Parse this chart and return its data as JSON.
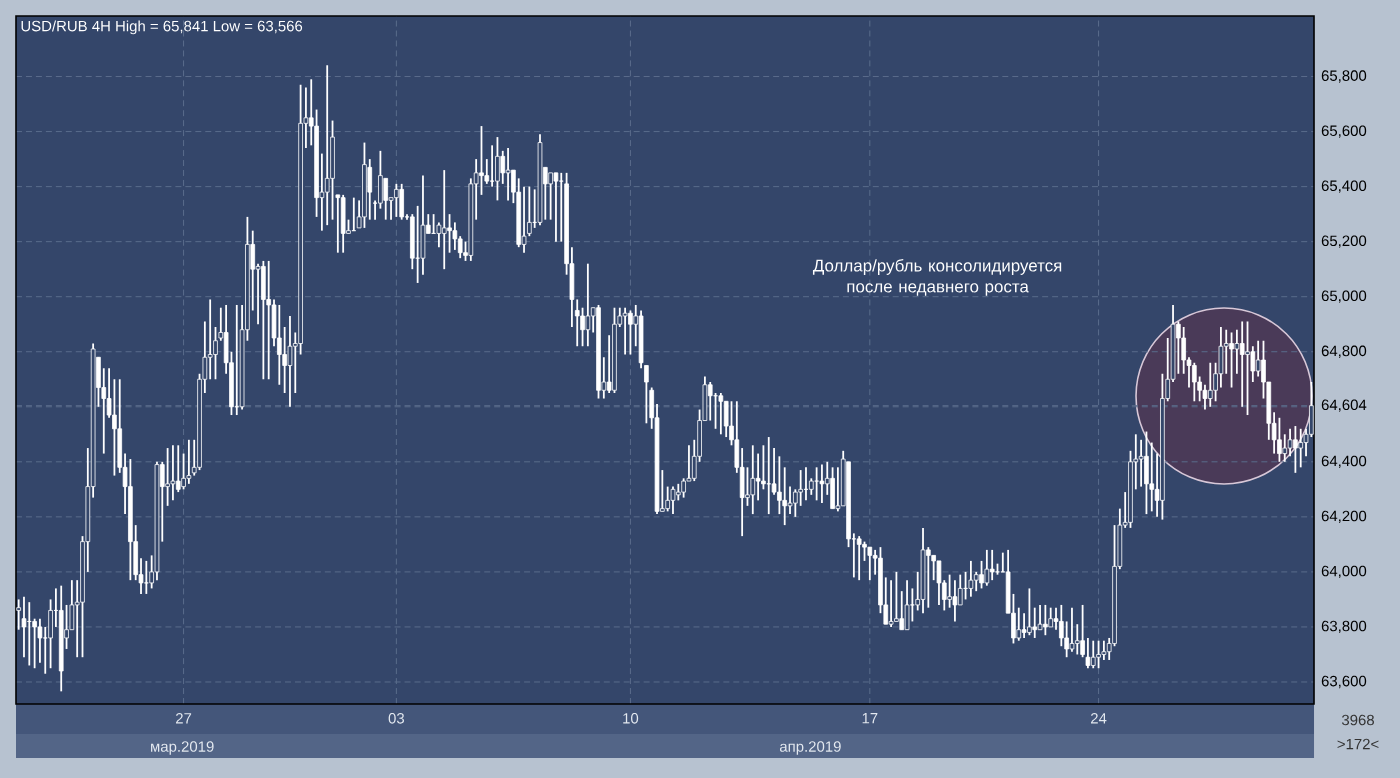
{
  "chart_data": {
    "type": "candlestick",
    "title": "USD/RUB 4H High = 65,841 Low = 63,566",
    "color": "#ffffff",
    "grid": true,
    "ylim": [
      63520,
      66020
    ],
    "yticks": [
      {
        "value": 63600,
        "label": "63,600"
      },
      {
        "value": 63800,
        "label": "63,800"
      },
      {
        "value": 64000,
        "label": "64,000"
      },
      {
        "value": 64200,
        "label": "64,200"
      },
      {
        "value": 64400,
        "label": "64,400"
      },
      {
        "value": 64600,
        "label": null
      },
      {
        "value": 64800,
        "label": "64,800"
      },
      {
        "value": 65000,
        "label": "65,000"
      },
      {
        "value": 65200,
        "label": "65,200"
      },
      {
        "value": 65400,
        "label": "65,400"
      },
      {
        "value": 65600,
        "label": "65,600"
      },
      {
        "value": 65800,
        "label": "65,800"
      },
      {
        "value": 64604,
        "label": "64,604"
      }
    ],
    "annotations": [
      "Доллар/рубль консолидируется после недавнего роста",
      "мар.2019",
      "апр.2019",
      "3968",
      ">172<"
    ],
    "categories": [
      null,
      null,
      null,
      null,
      null,
      null,
      null,
      null,
      null,
      null,
      null,
      null,
      null,
      null,
      null,
      null,
      null,
      null,
      null,
      null,
      null,
      null,
      null,
      null,
      null,
      null,
      null,
      null,
      null,
      null,
      null,
      "27",
      null,
      null,
      null,
      null,
      null,
      null,
      null,
      null,
      null,
      null,
      null,
      null,
      null,
      null,
      null,
      null,
      null,
      null,
      null,
      null,
      null,
      null,
      null,
      null,
      null,
      null,
      null,
      null,
      null,
      null,
      null,
      null,
      null,
      null,
      null,
      null,
      null,
      null,
      null,
      "03",
      null,
      null,
      null,
      null,
      null,
      null,
      null,
      null,
      null,
      null,
      null,
      null,
      null,
      null,
      null,
      null,
      null,
      null,
      null,
      null,
      null,
      null,
      null,
      null,
      null,
      null,
      null,
      null,
      null,
      null,
      null,
      null,
      null,
      null,
      null,
      null,
      null,
      null,
      null,
      null,
      null,
      null,
      null,
      "10",
      null,
      null,
      null,
      null,
      null,
      null,
      null,
      null,
      null,
      null,
      null,
      null,
      null,
      null,
      null,
      null,
      null,
      null,
      null,
      null,
      null,
      null,
      null,
      null,
      null,
      null,
      null,
      null,
      null,
      null,
      null,
      null,
      null,
      null,
      null,
      null,
      null,
      null,
      null,
      null,
      null,
      null,
      null,
      null,
      "17",
      null,
      null,
      null,
      null,
      null,
      null,
      null,
      null,
      null,
      null,
      null,
      null,
      null,
      null,
      null,
      null,
      null,
      null,
      null,
      null,
      null,
      null,
      null,
      null,
      null,
      null,
      null,
      null,
      null,
      null,
      null,
      null,
      null,
      null,
      null,
      null,
      null,
      null,
      null,
      null,
      null,
      null,
      "24",
      null,
      null,
      null,
      null,
      null,
      null,
      null,
      null,
      null,
      null,
      null,
      null,
      null,
      null,
      null,
      null,
      null,
      null,
      null,
      null,
      null,
      null,
      null,
      null,
      null,
      null,
      null,
      null,
      null,
      null,
      null,
      null,
      null,
      null,
      null,
      null,
      null,
      null,
      null,
      null
    ],
    "ohlc": [
      [
        63860,
        63900,
        63790,
        63870
      ],
      [
        63830,
        63910,
        63690,
        63800
      ],
      [
        63820,
        63890,
        63660,
        63820
      ],
      [
        63820,
        63830,
        63650,
        63800
      ],
      [
        63800,
        63830,
        63670,
        63760
      ],
      [
        63760,
        63800,
        63630,
        63760
      ],
      [
        63760,
        63900,
        63650,
        63860
      ],
      [
        63860,
        63940,
        63800,
        63860
      ],
      [
        63860,
        63950,
        63566,
        63640
      ],
      [
        63760,
        63880,
        63720,
        63790
      ],
      [
        63790,
        63970,
        63790,
        63880
      ],
      [
        63880,
        63970,
        63690,
        63890
      ],
      [
        63890,
        64130,
        63690,
        64110
      ],
      [
        64110,
        64450,
        64000,
        64310
      ],
      [
        64310,
        64830,
        64270,
        64810
      ],
      [
        64780,
        64780,
        64600,
        64670
      ],
      [
        64670,
        64740,
        64430,
        64630
      ],
      [
        64630,
        64740,
        64560,
        64570
      ],
      [
        64570,
        64700,
        64350,
        64520
      ],
      [
        64520,
        64700,
        64360,
        64380
      ],
      [
        64380,
        64430,
        64210,
        64310
      ],
      [
        64310,
        64410,
        63970,
        64110
      ],
      [
        64110,
        64170,
        63970,
        63990
      ],
      [
        63990,
        64050,
        63920,
        63960
      ],
      [
        63960,
        64040,
        63920,
        63960
      ],
      [
        63960,
        64060,
        63940,
        64000
      ],
      [
        64000,
        64400,
        63970,
        64390
      ],
      [
        64390,
        64400,
        64110,
        64310
      ],
      [
        64310,
        64450,
        64240,
        64320
      ],
      [
        64320,
        64460,
        64260,
        64330
      ],
      [
        64330,
        64460,
        64290,
        64300
      ],
      [
        64310,
        64430,
        64300,
        64340
      ],
      [
        64340,
        64480,
        64320,
        64350
      ],
      [
        64360,
        64480,
        64350,
        64380
      ],
      [
        64380,
        64720,
        64370,
        64700
      ],
      [
        64700,
        64910,
        64650,
        64780
      ],
      [
        64780,
        64990,
        64700,
        64790
      ],
      [
        64790,
        64890,
        64700,
        64840
      ],
      [
        64850,
        64960,
        64840,
        64870
      ],
      [
        64870,
        64970,
        64720,
        64760
      ],
      [
        64760,
        64800,
        64570,
        64600
      ],
      [
        64600,
        64970,
        64570,
        64600
      ],
      [
        64600,
        64970,
        64590,
        64880
      ],
      [
        64880,
        65290,
        64840,
        65190
      ],
      [
        65190,
        65240,
        64950,
        65100
      ],
      [
        65100,
        65120,
        64900,
        65110
      ],
      [
        65110,
        65130,
        64700,
        64990
      ],
      [
        64990,
        65130,
        64700,
        64970
      ],
      [
        64970,
        64990,
        64820,
        64850
      ],
      [
        64850,
        64970,
        64680,
        64790
      ],
      [
        64790,
        64890,
        64650,
        64750
      ],
      [
        64750,
        64930,
        64600,
        64820
      ],
      [
        64820,
        64870,
        64650,
        64830
      ],
      [
        64830,
        65770,
        64790,
        65630
      ],
      [
        65630,
        65760,
        65540,
        65650
      ],
      [
        65650,
        65790,
        65550,
        65620
      ],
      [
        65620,
        65680,
        65290,
        65360
      ],
      [
        65360,
        65520,
        65240,
        65380
      ],
      [
        65380,
        65841,
        65260,
        65430
      ],
      [
        65430,
        65640,
        65280,
        65580
      ],
      [
        65370,
        65370,
        65160,
        65360
      ],
      [
        65360,
        65370,
        65160,
        65230
      ],
      [
        65230,
        65280,
        65230,
        65240
      ],
      [
        65240,
        65360,
        65240,
        65240
      ],
      [
        65250,
        65350,
        65250,
        65290
      ],
      [
        65290,
        65560,
        65250,
        65480
      ],
      [
        65470,
        65500,
        65280,
        65380
      ],
      [
        65340,
        65350,
        65280,
        65340
      ],
      [
        65340,
        65530,
        65320,
        65440
      ],
      [
        65430,
        65430,
        65280,
        65350
      ],
      [
        65350,
        65360,
        65280,
        65360
      ],
      [
        65360,
        65410,
        65290,
        65390
      ],
      [
        65390,
        65410,
        65280,
        65290
      ],
      [
        65290,
        65300,
        65280,
        65290
      ],
      [
        65290,
        65300,
        65100,
        65140
      ],
      [
        65140,
        65330,
        65050,
        65140
      ],
      [
        65140,
        65440,
        65080,
        65260
      ],
      [
        65260,
        65300,
        65230,
        65230
      ],
      [
        65230,
        65300,
        65230,
        65230
      ],
      [
        65230,
        65270,
        65180,
        65260
      ],
      [
        65230,
        65460,
        65100,
        65250
      ],
      [
        65250,
        65300,
        65160,
        65240
      ],
      [
        65240,
        65270,
        65170,
        65210
      ],
      [
        65210,
        65220,
        65140,
        65160
      ],
      [
        65160,
        65200,
        65130,
        65150
      ],
      [
        65150,
        65430,
        65130,
        65410
      ],
      [
        65410,
        65500,
        65280,
        65450
      ],
      [
        65450,
        65620,
        65370,
        65440
      ],
      [
        65440,
        65500,
        65410,
        65420
      ],
      [
        65420,
        65550,
        65400,
        65420
      ],
      [
        65420,
        65580,
        65350,
        65510
      ],
      [
        65510,
        65530,
        65410,
        65450
      ],
      [
        65450,
        65540,
        65350,
        65460
      ],
      [
        65460,
        65460,
        65340,
        65380
      ],
      [
        65380,
        65430,
        65180,
        65190
      ],
      [
        65190,
        65400,
        65160,
        65220
      ],
      [
        65230,
        65400,
        65220,
        65270
      ],
      [
        65270,
        65390,
        65250,
        65270
      ],
      [
        65270,
        65590,
        65260,
        65560
      ],
      [
        65470,
        65470,
        65280,
        65410
      ],
      [
        65410,
        65450,
        65280,
        65450
      ],
      [
        65450,
        65450,
        65200,
        65420
      ],
      [
        65420,
        65450,
        65200,
        65420
      ],
      [
        65410,
        65450,
        65080,
        65120
      ],
      [
        65120,
        65180,
        64890,
        64990
      ],
      [
        64950,
        64990,
        64820,
        64930
      ],
      [
        64930,
        64960,
        64820,
        64880
      ],
      [
        64880,
        65120,
        64820,
        64930
      ],
      [
        64930,
        64960,
        64870,
        64960
      ],
      [
        64960,
        64970,
        64630,
        64660
      ],
      [
        64660,
        64780,
        64630,
        64690
      ],
      [
        64690,
        64860,
        64650,
        64660
      ],
      [
        64660,
        64960,
        64650,
        64900
      ],
      [
        64900,
        64960,
        64890,
        64930
      ],
      [
        64930,
        64960,
        64790,
        64940
      ],
      [
        64940,
        64950,
        64790,
        64900
      ],
      [
        64900,
        64970,
        64820,
        64930
      ],
      [
        64930,
        64950,
        64740,
        64760
      ],
      [
        64750,
        64750,
        64540,
        64690
      ],
      [
        64660,
        64670,
        64520,
        64560
      ],
      [
        64560,
        64610,
        64210,
        64220
      ],
      [
        64220,
        64370,
        64220,
        64230
      ],
      [
        64230,
        64310,
        64220,
        64260
      ],
      [
        64260,
        64310,
        64210,
        64300
      ],
      [
        64280,
        64320,
        64260,
        64290
      ],
      [
        64290,
        64340,
        64270,
        64330
      ],
      [
        64330,
        64460,
        64330,
        64340
      ],
      [
        64340,
        64480,
        64330,
        64420
      ],
      [
        64420,
        64590,
        64400,
        64550
      ],
      [
        64550,
        64710,
        64550,
        64680
      ],
      [
        64680,
        64690,
        64550,
        64640
      ],
      [
        64640,
        64650,
        64520,
        64640
      ],
      [
        64640,
        64650,
        64500,
        64620
      ],
      [
        64620,
        64620,
        64490,
        64530
      ],
      [
        64530,
        64620,
        64460,
        64480
      ],
      [
        64480,
        64620,
        64360,
        64380
      ],
      [
        64380,
        64450,
        64130,
        64270
      ],
      [
        64270,
        64380,
        64240,
        64280
      ],
      [
        64280,
        64460,
        64210,
        64340
      ],
      [
        64340,
        64430,
        64260,
        64330
      ],
      [
        64330,
        64460,
        64300,
        64320
      ],
      [
        64320,
        64490,
        64210,
        64320
      ],
      [
        64320,
        64450,
        64280,
        64290
      ],
      [
        64290,
        64420,
        64210,
        64260
      ],
      [
        64260,
        64380,
        64170,
        64240
      ],
      [
        64240,
        64310,
        64210,
        64250
      ],
      [
        64250,
        64300,
        64200,
        64290
      ],
      [
        64290,
        64370,
        64240,
        64300
      ],
      [
        64300,
        64380,
        64260,
        64300
      ],
      [
        64300,
        64340,
        64280,
        64330
      ],
      [
        64330,
        64380,
        64260,
        64330
      ],
      [
        64330,
        64390,
        64250,
        64320
      ],
      [
        64320,
        64400,
        64280,
        64340
      ],
      [
        64340,
        64380,
        64230,
        64230
      ],
      [
        64230,
        64380,
        64220,
        64240
      ],
      [
        64240,
        64440,
        64240,
        64410
      ],
      [
        64400,
        64400,
        64090,
        64120
      ],
      [
        64120,
        64140,
        63980,
        64120
      ],
      [
        64120,
        64130,
        63970,
        64100
      ],
      [
        64100,
        64110,
        64040,
        64090
      ],
      [
        64090,
        64090,
        63970,
        64060
      ],
      [
        64060,
        64080,
        63990,
        64050
      ],
      [
        64050,
        64090,
        63850,
        63880
      ],
      [
        63880,
        63980,
        63810,
        63810
      ],
      [
        63810,
        63970,
        63800,
        63820
      ],
      [
        63820,
        64000,
        63820,
        63830
      ],
      [
        63830,
        63930,
        63790,
        63790
      ],
      [
        63790,
        63970,
        63790,
        63880
      ],
      [
        63880,
        63940,
        63820,
        63880
      ],
      [
        63880,
        64000,
        63860,
        63900
      ],
      [
        63900,
        64160,
        63850,
        64080
      ],
      [
        64080,
        64090,
        63870,
        64060
      ],
      [
        64060,
        64060,
        63970,
        64040
      ],
      [
        64040,
        64040,
        63880,
        63960
      ],
      [
        63960,
        63970,
        63860,
        63900
      ],
      [
        63900,
        63990,
        63870,
        63910
      ],
      [
        63910,
        63970,
        63820,
        63880
      ],
      [
        63880,
        63990,
        63880,
        63940
      ],
      [
        63940,
        64000,
        63900,
        63940
      ],
      [
        63940,
        64040,
        63910,
        63970
      ],
      [
        63970,
        64000,
        63930,
        63990
      ],
      [
        63990,
        64040,
        63940,
        63960
      ],
      [
        63960,
        64080,
        63950,
        64010
      ],
      [
        64010,
        64080,
        63970,
        64000
      ],
      [
        64000,
        64030,
        63990,
        64000
      ],
      [
        64000,
        64070,
        64000,
        64000
      ],
      [
        64000,
        64080,
        63850,
        63850
      ],
      [
        63850,
        63920,
        63740,
        63760
      ],
      [
        63760,
        63870,
        63750,
        63790
      ],
      [
        63790,
        63850,
        63760,
        63780
      ],
      [
        63780,
        63940,
        63770,
        63800
      ],
      [
        63800,
        63870,
        63760,
        63790
      ],
      [
        63790,
        63880,
        63790,
        63810
      ],
      [
        63810,
        63880,
        63770,
        63800
      ],
      [
        63800,
        63870,
        63800,
        63830
      ],
      [
        63830,
        63870,
        63790,
        63820
      ],
      [
        63820,
        63880,
        63730,
        63760
      ],
      [
        63760,
        63820,
        63690,
        63720
      ],
      [
        63720,
        63870,
        63710,
        63740
      ],
      [
        63740,
        63810,
        63700,
        63750
      ],
      [
        63750,
        63880,
        63690,
        63700
      ],
      [
        63690,
        63760,
        63650,
        63660
      ],
      [
        63660,
        63750,
        63650,
        63690
      ],
      [
        63690,
        63750,
        63650,
        63700
      ],
      [
        63700,
        63750,
        63680,
        63710
      ],
      [
        63710,
        63760,
        63680,
        63740
      ],
      [
        63740,
        64170,
        63730,
        64020
      ],
      [
        64020,
        64230,
        64010,
        64170
      ],
      [
        64170,
        64290,
        64160,
        64180
      ],
      [
        64180,
        64440,
        64160,
        64400
      ],
      [
        64400,
        64500,
        64300,
        64410
      ],
      [
        64410,
        64480,
        64310,
        64420
      ],
      [
        64420,
        64510,
        64210,
        64320
      ],
      [
        64320,
        64470,
        64220,
        64300
      ],
      [
        64300,
        64430,
        64200,
        64260
      ],
      [
        64260,
        64720,
        64190,
        64630
      ],
      [
        64630,
        64850,
        64620,
        64700
      ],
      [
        64700,
        64970,
        64690,
        64900
      ],
      [
        64900,
        64910,
        64720,
        64850
      ],
      [
        64850,
        64890,
        64720,
        64770
      ],
      [
        64770,
        64780,
        64670,
        64750
      ],
      [
        64750,
        64760,
        64620,
        64690
      ],
      [
        64690,
        64710,
        64620,
        64660
      ],
      [
        64660,
        64680,
        64590,
        64630
      ],
      [
        64630,
        64760,
        64600,
        64660
      ],
      [
        64660,
        64760,
        64620,
        64720
      ],
      [
        64720,
        64890,
        64670,
        64820
      ],
      [
        64820,
        64880,
        64720,
        64830
      ],
      [
        64830,
        64870,
        64670,
        64810
      ],
      [
        64810,
        64880,
        64720,
        64830
      ],
      [
        64830,
        64910,
        64600,
        64790
      ],
      [
        64790,
        64910,
        64570,
        64800
      ],
      [
        64800,
        64820,
        64690,
        64730
      ],
      [
        64730,
        64840,
        64710,
        64770
      ],
      [
        64770,
        64840,
        64630,
        64690
      ],
      [
        64690,
        64690,
        64480,
        64540
      ],
      [
        64540,
        64580,
        64430,
        64480
      ],
      [
        64480,
        64560,
        64400,
        64430
      ],
      [
        64430,
        64500,
        64400,
        64450
      ],
      [
        64450,
        64520,
        64420,
        64480
      ],
      [
        64480,
        64530,
        64360,
        64450
      ],
      [
        64450,
        64520,
        64380,
        64470
      ],
      [
        64470,
        64520,
        64420,
        64500
      ],
      [
        64500,
        64690,
        64490,
        64604
      ]
    ]
  }
}
